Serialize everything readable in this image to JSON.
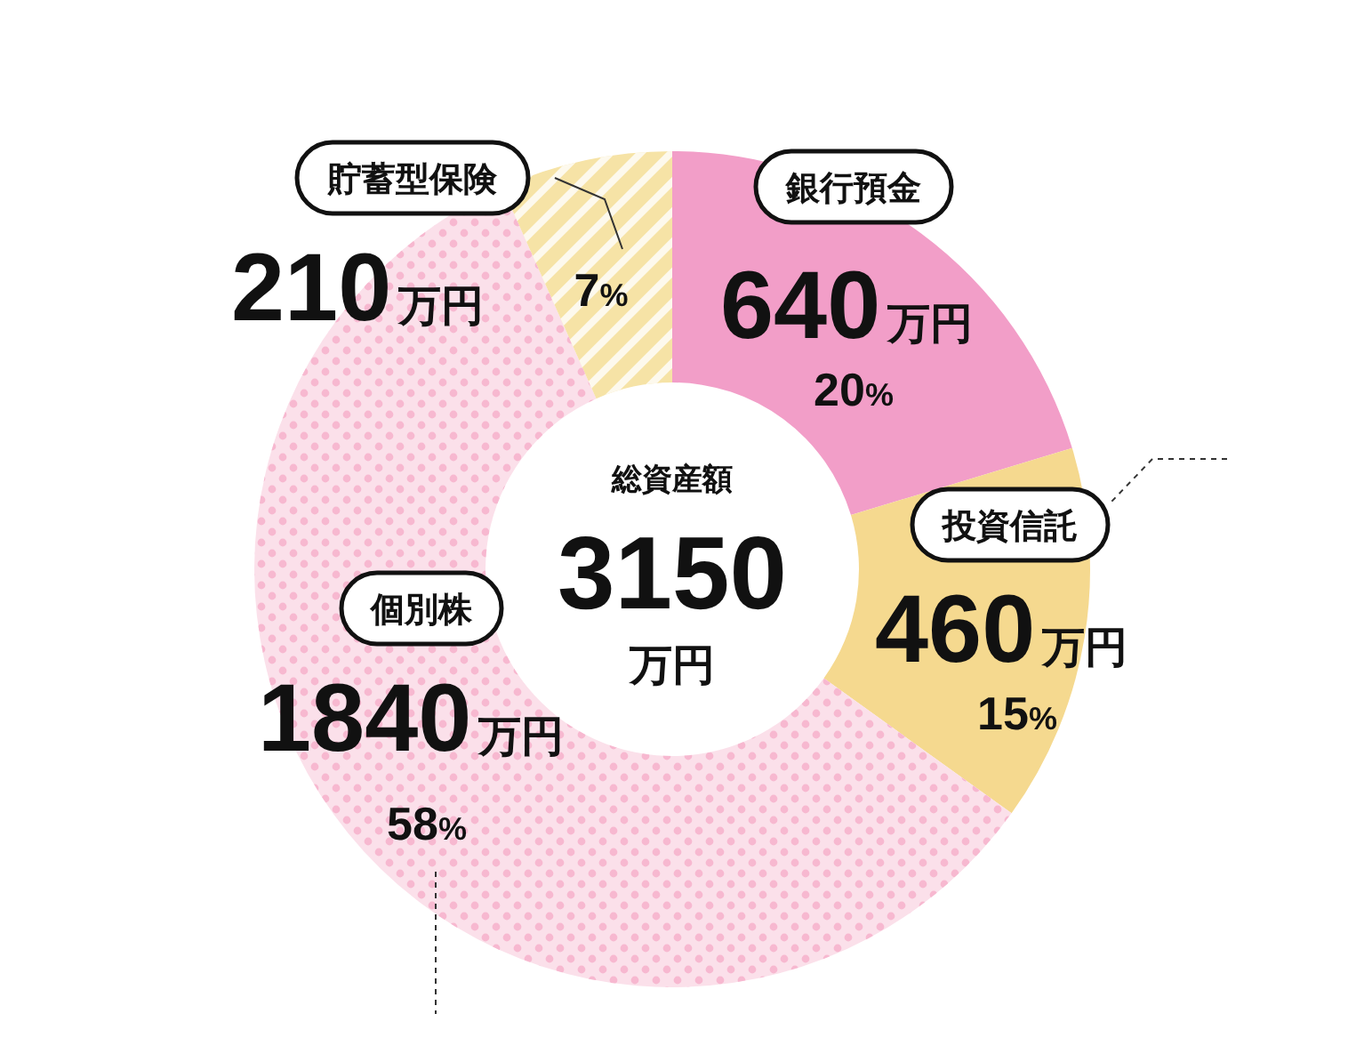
{
  "chart_data": {
    "type": "donut",
    "categories": [
      "銀行預金",
      "投資信託",
      "個別株",
      "貯蓄型保険"
    ],
    "values": [
      640,
      460,
      1840,
      210
    ],
    "colors": [
      "#f29ec8",
      "#f5d98f",
      "#fbe0ea",
      "#f6e3a6"
    ],
    "value_labels": [
      "640万円",
      "460万円",
      "1840万円",
      "210万円"
    ],
    "annotations": [
      "20%",
      "15%",
      "58%",
      "7%",
      "総資産額",
      "3150万円"
    ]
  }
}
